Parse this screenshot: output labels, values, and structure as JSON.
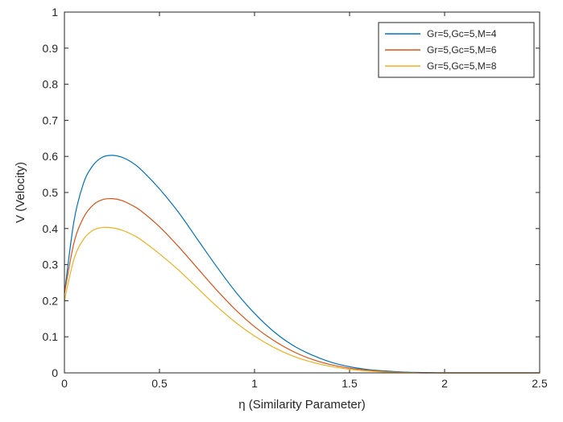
{
  "chart_data": {
    "type": "line",
    "title": "",
    "xlabel": "η  (Similarity Parameter)",
    "ylabel": "V (Velocity)",
    "xlim": [
      0,
      2.5
    ],
    "ylim": [
      0,
      1
    ],
    "xticks": [
      "0",
      "0.5",
      "1",
      "1.5",
      "2",
      "2.5"
    ],
    "yticks": [
      "0",
      "0.1",
      "0.2",
      "0.3",
      "0.4",
      "0.5",
      "0.6",
      "0.7",
      "0.8",
      "0.9",
      "1"
    ],
    "grid": false,
    "legend_position": "top-right",
    "x": [
      0,
      0.05,
      0.1,
      0.15,
      0.2,
      0.25,
      0.3,
      0.35,
      0.4,
      0.5,
      0.6,
      0.7,
      0.8,
      0.9,
      1.0,
      1.1,
      1.2,
      1.3,
      1.4,
      1.5,
      1.6,
      1.7,
      1.8,
      1.9,
      2.0,
      2.1,
      2.2,
      2.3,
      2.4,
      2.5
    ],
    "series": [
      {
        "name": "Gr=5,Gc=5,M=4",
        "color": "#0072BD",
        "values": [
          0.22,
          0.42,
          0.525,
          0.575,
          0.598,
          0.603,
          0.598,
          0.585,
          0.565,
          0.51,
          0.445,
          0.37,
          0.295,
          0.225,
          0.165,
          0.115,
          0.077,
          0.05,
          0.03,
          0.017,
          0.009,
          0.005,
          0.002,
          0.001,
          0.0,
          0.0,
          0.0,
          0.0,
          0.0,
          0.0
        ]
      },
      {
        "name": "Gr=5,Gc=5,M=6",
        "color": "#D95319",
        "values": [
          0.22,
          0.36,
          0.43,
          0.465,
          0.48,
          0.483,
          0.478,
          0.466,
          0.45,
          0.405,
          0.35,
          0.29,
          0.23,
          0.175,
          0.128,
          0.09,
          0.06,
          0.038,
          0.023,
          0.013,
          0.007,
          0.003,
          0.001,
          0.0,
          0.0,
          0.0,
          0.0,
          0.0,
          0.0,
          0.0
        ]
      },
      {
        "name": "Gr=5,Gc=5,M=8",
        "color": "#EDB120",
        "values": [
          0.2,
          0.315,
          0.37,
          0.395,
          0.403,
          0.402,
          0.396,
          0.385,
          0.37,
          0.33,
          0.285,
          0.235,
          0.185,
          0.14,
          0.102,
          0.071,
          0.047,
          0.03,
          0.018,
          0.01,
          0.005,
          0.002,
          0.001,
          0.0,
          0.0,
          0.0,
          0.0,
          0.0,
          0.0,
          0.0
        ]
      }
    ]
  }
}
